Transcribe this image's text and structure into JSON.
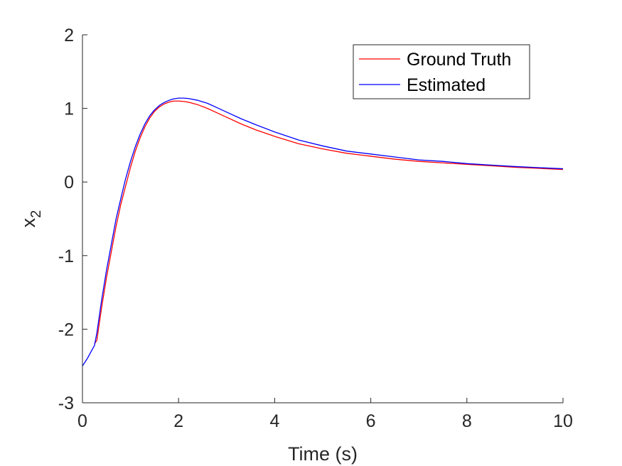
{
  "chart_data": {
    "type": "line",
    "xlabel": "Time (s)",
    "ylabel_base": "x",
    "ylabel_sub": "2",
    "xlim": [
      0,
      10
    ],
    "ylim": [
      -3,
      2
    ],
    "xticks": [
      0,
      2,
      4,
      6,
      8,
      10
    ],
    "yticks": [
      -3,
      -2,
      -1,
      0,
      1,
      2
    ],
    "grid": false,
    "legend_position": "top-right",
    "series": [
      {
        "name": "Ground Truth",
        "color": "#ff0000",
        "x": [
          0.25,
          0.3,
          0.4,
          0.5,
          0.6,
          0.7,
          0.8,
          0.9,
          1.0,
          1.1,
          1.2,
          1.3,
          1.4,
          1.5,
          1.6,
          1.7,
          1.8,
          1.9,
          2.0,
          2.1,
          2.2,
          2.4,
          2.6,
          2.8,
          3.0,
          3.3,
          3.6,
          4.0,
          4.5,
          5.0,
          5.5,
          6.0,
          6.5,
          7.0,
          7.5,
          8.0,
          8.5,
          9.0,
          9.5,
          10.0
        ],
        "y": [
          -2.2,
          -2.15,
          -1.7,
          -1.3,
          -0.95,
          -0.6,
          -0.3,
          -0.05,
          0.2,
          0.42,
          0.6,
          0.75,
          0.87,
          0.96,
          1.02,
          1.06,
          1.085,
          1.1,
          1.1,
          1.095,
          1.085,
          1.05,
          1.0,
          0.94,
          0.88,
          0.79,
          0.71,
          0.62,
          0.52,
          0.45,
          0.39,
          0.35,
          0.31,
          0.28,
          0.26,
          0.24,
          0.22,
          0.2,
          0.185,
          0.17
        ]
      },
      {
        "name": "Estimated",
        "color": "#0000ff",
        "x": [
          0.0,
          0.1,
          0.2,
          0.25,
          0.3,
          0.4,
          0.5,
          0.6,
          0.7,
          0.8,
          0.9,
          1.0,
          1.1,
          1.2,
          1.3,
          1.4,
          1.5,
          1.6,
          1.7,
          1.8,
          1.9,
          2.0,
          2.1,
          2.2,
          2.4,
          2.6,
          2.8,
          3.0,
          3.3,
          3.6,
          4.0,
          4.5,
          5.0,
          5.5,
          6.0,
          6.5,
          7.0,
          7.5,
          8.0,
          8.5,
          9.0,
          9.5,
          10.0
        ],
        "y": [
          -2.5,
          -2.4,
          -2.28,
          -2.22,
          -2.05,
          -1.6,
          -1.2,
          -0.85,
          -0.5,
          -0.22,
          0.05,
          0.28,
          0.48,
          0.65,
          0.79,
          0.9,
          0.98,
          1.04,
          1.08,
          1.11,
          1.13,
          1.14,
          1.14,
          1.135,
          1.11,
          1.07,
          1.01,
          0.95,
          0.86,
          0.78,
          0.68,
          0.57,
          0.49,
          0.42,
          0.38,
          0.34,
          0.3,
          0.28,
          0.25,
          0.23,
          0.21,
          0.195,
          0.18
        ]
      }
    ]
  }
}
